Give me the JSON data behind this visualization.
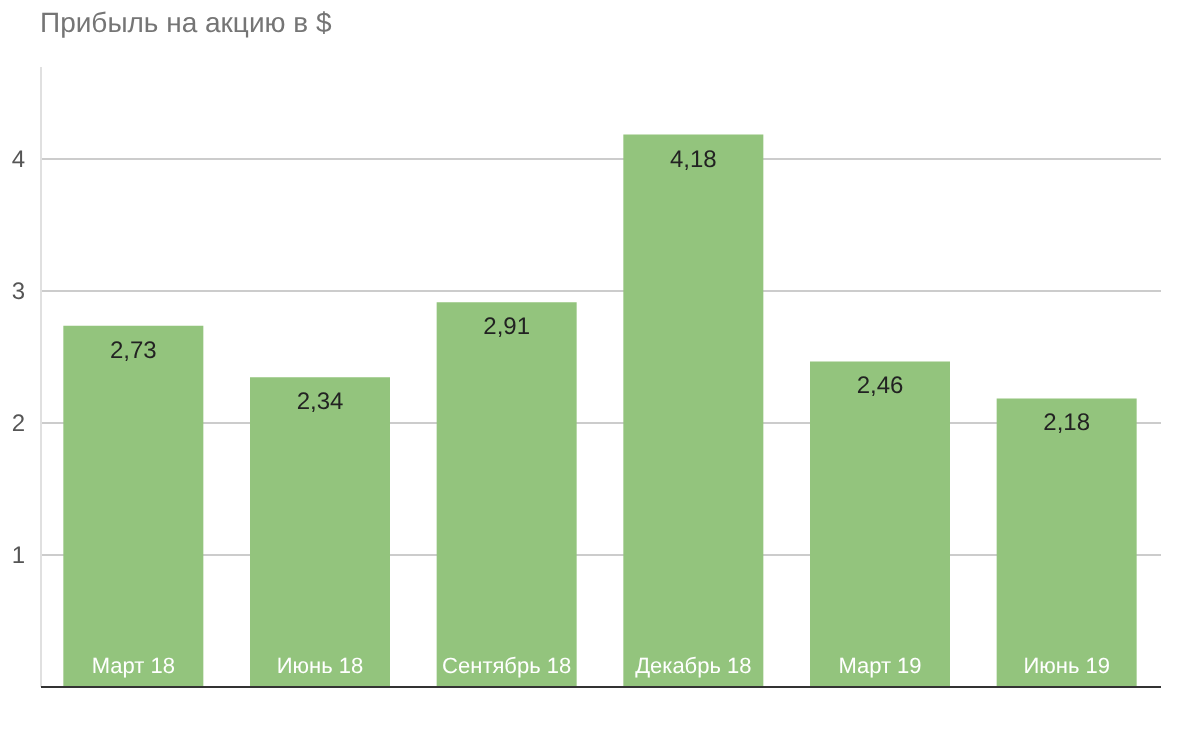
{
  "chart_data": {
    "type": "bar",
    "title": "Прибыль на акцию в $",
    "categories": [
      "Март 18",
      "Июнь 18",
      "Сентябрь 18",
      "Декабрь 18",
      "Март 19",
      "Июнь 19"
    ],
    "values": [
      2.73,
      2.34,
      2.91,
      4.18,
      2.46,
      2.18
    ],
    "value_labels": [
      "2,73",
      "2,34",
      "2,91",
      "4,18",
      "2,46",
      "2,18"
    ],
    "color": "#93c47d",
    "ylim": [
      0,
      4.7
    ],
    "yticks": [
      1,
      2,
      3,
      4
    ],
    "grid": "y"
  }
}
